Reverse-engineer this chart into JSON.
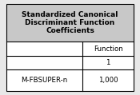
{
  "title_lines": [
    "Standardized Canonical",
    "Discriminant Function",
    "Coefficients"
  ],
  "col_header_1": "Function",
  "col_header_2": "1",
  "row_label": "M-FBSUPER-n",
  "row_value": "1,000",
  "bg_color": "#e8e8e8",
  "title_bg": "#c8c8c8",
  "cell_bg": "#ffffff",
  "border_color": "#000000",
  "title_fontsize": 6.5,
  "cell_fontsize": 6.2,
  "fig_width": 1.75,
  "fig_height": 1.19,
  "dpi": 100
}
